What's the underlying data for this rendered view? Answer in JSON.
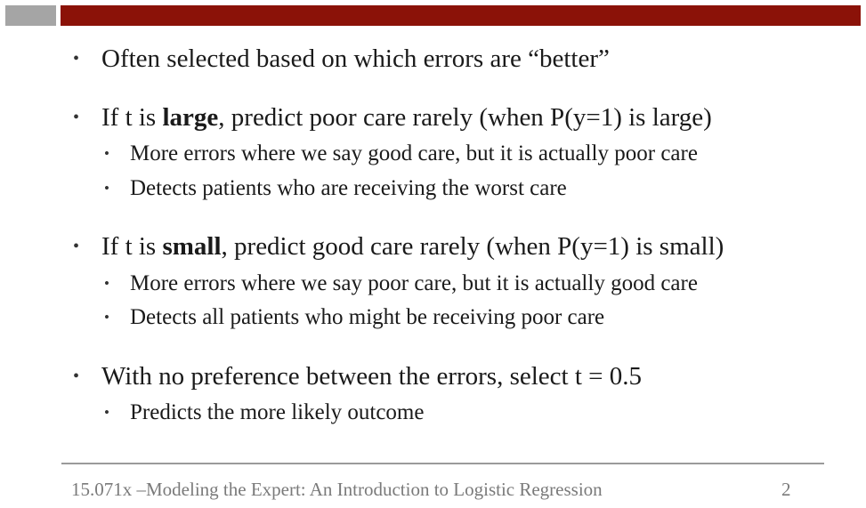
{
  "slide": {
    "bullets": [
      {
        "text": "Often selected based on which errors are “better”"
      },
      {
        "prefix": "If  t is ",
        "bold": "large",
        "suffix": ", predict poor care rarely (when P(y=1) is large)",
        "sub": [
          "More errors where we say good care, but it is actually poor care",
          "Detects patients who are receiving the worst care"
        ]
      },
      {
        "prefix": "If  t is ",
        "bold": "small",
        "suffix": ", predict good care rarely (when P(y=1) is small)",
        "sub": [
          "More errors where we say poor care, but it is actually good care",
          "Detects all patients who might be receiving poor care"
        ]
      },
      {
        "text": "With no preference between the errors, select t = 0.5",
        "sub": [
          "Predicts the more likely outcome"
        ]
      }
    ],
    "bullet_glyph": "•"
  },
  "footer": {
    "text": "15.071x –Modeling the Expert: An Introduction to Logistic Regression",
    "page_number": "2"
  },
  "colors": {
    "header_bar_red": "#8b1208",
    "header_bar_gray": "#a5a5a5",
    "footer_text": "#7a7a7a"
  }
}
